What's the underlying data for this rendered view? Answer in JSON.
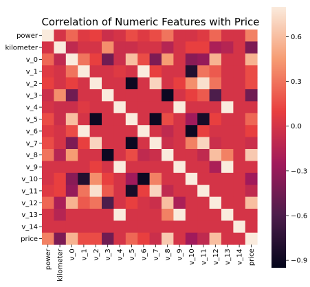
{
  "chart_data": {
    "type": "heatmap",
    "title": "Correlation of Numeric Features with Price",
    "labels": [
      "power",
      "kilometer",
      "v_0",
      "v_1",
      "v_2",
      "v_3",
      "v_4",
      "v_5",
      "v_6",
      "v_7",
      "v_8",
      "v_9",
      "v_10",
      "v_11",
      "v_12",
      "v_13",
      "v_14",
      "price"
    ],
    "colorbar": {
      "min": -0.95,
      "max": 0.8,
      "ticks": [
        -0.9,
        -0.6,
        -0.3,
        0.0,
        0.3,
        0.6
      ]
    },
    "values": [
      [
        1.0,
        0.0,
        0.25,
        0.05,
        0.1,
        -0.05,
        0.0,
        0.15,
        0.05,
        0.15,
        0.3,
        0.0,
        0.0,
        0.05,
        0.25,
        0.0,
        0.0,
        0.35
      ],
      [
        0.0,
        1.0,
        -0.1,
        0.0,
        0.0,
        0.4,
        -0.05,
        -0.05,
        0.0,
        0.0,
        -0.15,
        0.0,
        0.1,
        0.1,
        -0.2,
        -0.15,
        0.0,
        -0.4
      ],
      [
        0.25,
        -0.1,
        1.0,
        0.3,
        0.1,
        -0.45,
        -0.05,
        0.6,
        0.15,
        -0.4,
        0.45,
        0.0,
        -0.35,
        -0.3,
        0.55,
        0.0,
        0.0,
        0.55
      ],
      [
        0.05,
        0.0,
        0.3,
        1.0,
        0.0,
        0.0,
        0.05,
        0.0,
        0.9,
        0.1,
        0.0,
        0.0,
        -0.8,
        0.3,
        0.2,
        0.0,
        0.0,
        0.15
      ],
      [
        0.1,
        0.0,
        0.1,
        0.0,
        1.0,
        0.0,
        0.0,
        -0.9,
        0.0,
        0.7,
        0.0,
        0.1,
        0.4,
        0.75,
        0.3,
        0.0,
        0.0,
        0.15
      ],
      [
        -0.05,
        0.4,
        -0.45,
        0.0,
        0.0,
        1.0,
        0.0,
        0.0,
        0.0,
        0.0,
        -0.9,
        0.0,
        0.1,
        0.2,
        -0.6,
        0.0,
        0.0,
        -0.45
      ],
      [
        0.0,
        -0.05,
        -0.05,
        0.05,
        0.0,
        0.0,
        1.0,
        0.0,
        0.0,
        0.0,
        0.0,
        0.9,
        0.0,
        0.0,
        0.0,
        0.9,
        0.0,
        0.0
      ],
      [
        0.15,
        -0.05,
        0.6,
        0.0,
        -0.9,
        0.0,
        0.0,
        1.0,
        0.0,
        -0.9,
        0.15,
        0.0,
        -0.25,
        -0.85,
        0.1,
        0.0,
        0.0,
        0.25
      ],
      [
        0.05,
        0.0,
        0.15,
        0.9,
        0.0,
        0.0,
        0.0,
        0.0,
        1.0,
        0.0,
        -0.1,
        0.0,
        -0.9,
        0.1,
        0.0,
        0.0,
        0.0,
        0.1
      ],
      [
        0.15,
        0.0,
        -0.4,
        0.1,
        0.7,
        0.0,
        0.0,
        -0.9,
        0.0,
        1.0,
        -0.05,
        0.0,
        0.35,
        0.7,
        -0.05,
        0.0,
        0.0,
        -0.05
      ],
      [
        0.3,
        -0.15,
        0.45,
        0.0,
        0.0,
        -0.9,
        0.0,
        0.15,
        -0.1,
        -0.05,
        1.0,
        0.0,
        0.0,
        -0.1,
        0.6,
        0.35,
        0.0,
        0.65
      ],
      [
        0.0,
        0.0,
        0.0,
        0.0,
        0.1,
        0.0,
        0.9,
        0.0,
        0.0,
        0.0,
        0.0,
        1.0,
        0.0,
        0.0,
        -0.2,
        0.9,
        0.0,
        0.0
      ],
      [
        0.0,
        0.1,
        -0.35,
        -0.8,
        0.4,
        0.1,
        0.0,
        -0.25,
        -0.9,
        0.35,
        0.0,
        0.0,
        1.0,
        0.0,
        0.0,
        0.0,
        0.0,
        -0.25
      ],
      [
        0.05,
        0.1,
        -0.3,
        0.3,
        0.75,
        0.2,
        0.0,
        -0.85,
        0.1,
        0.7,
        -0.1,
        0.0,
        0.0,
        1.0,
        0.0,
        0.0,
        0.0,
        -0.1
      ],
      [
        0.25,
        -0.2,
        0.55,
        0.2,
        0.3,
        -0.6,
        0.0,
        0.1,
        0.0,
        -0.05,
        0.6,
        -0.2,
        0.0,
        0.0,
        1.0,
        0.0,
        0.0,
        0.6
      ],
      [
        0.0,
        -0.15,
        0.0,
        0.0,
        0.0,
        0.0,
        0.9,
        0.0,
        0.0,
        0.0,
        0.35,
        0.9,
        0.0,
        0.0,
        0.0,
        1.0,
        0.0,
        0.0
      ],
      [
        0.0,
        0.0,
        0.0,
        0.0,
        0.0,
        0.0,
        0.0,
        0.0,
        0.0,
        0.0,
        0.0,
        0.0,
        0.0,
        0.0,
        0.0,
        0.0,
        1.0,
        0.0
      ],
      [
        0.35,
        -0.4,
        0.55,
        0.15,
        0.15,
        -0.45,
        0.0,
        0.25,
        0.1,
        -0.05,
        0.65,
        0.0,
        -0.25,
        -0.1,
        0.6,
        0.0,
        0.0,
        1.0
      ]
    ]
  }
}
